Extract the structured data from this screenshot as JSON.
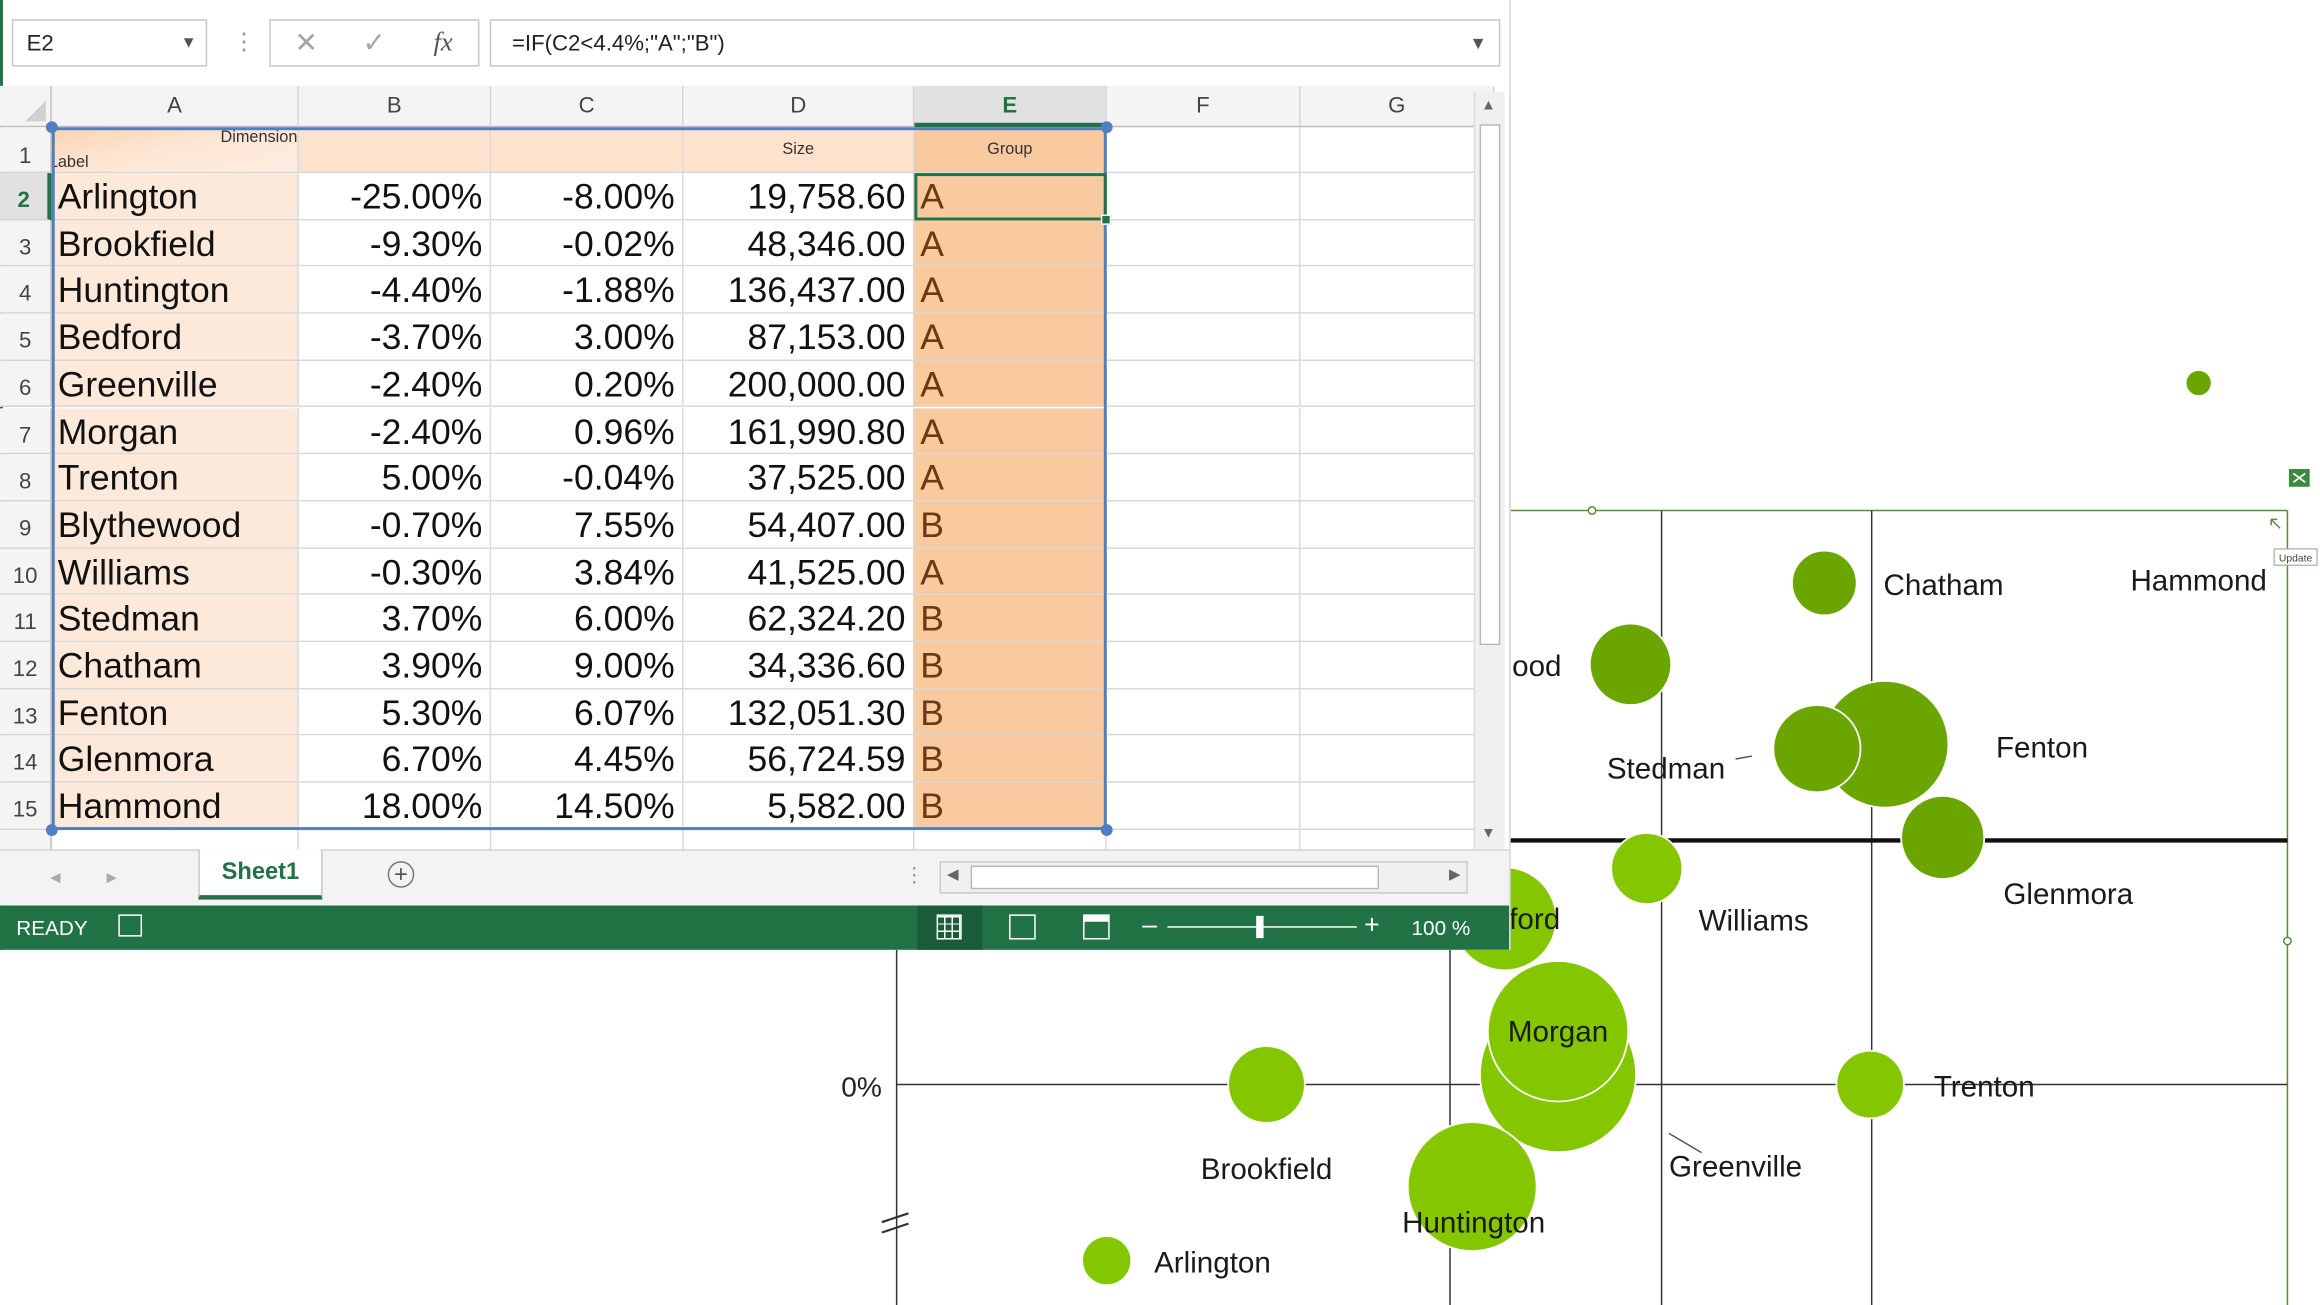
{
  "excel": {
    "name_box": "E2",
    "formula": "=IF(C2<4.4%;\"A\";\"B\")",
    "formula_buttons": {
      "cancel": "✕",
      "enter": "✓",
      "function": "fx"
    },
    "columns": [
      "A",
      "B",
      "C",
      "D",
      "E",
      "F",
      "G"
    ],
    "selected_column": "E",
    "header_row": {
      "row": "1",
      "dimension": "Dimension",
      "label": "Label",
      "size": "Size",
      "group": "Group"
    },
    "rows": [
      {
        "row": "2",
        "label": "Arlington",
        "b": "-25.00%",
        "c": "-8.00%",
        "d": "19,758.60",
        "e": "A"
      },
      {
        "row": "3",
        "label": "Brookfield",
        "b": "-9.30%",
        "c": "-0.02%",
        "d": "48,346.00",
        "e": "A"
      },
      {
        "row": "4",
        "label": "Huntington",
        "b": "-4.40%",
        "c": "-1.88%",
        "d": "136,437.00",
        "e": "A"
      },
      {
        "row": "5",
        "label": "Bedford",
        "b": "-3.70%",
        "c": "3.00%",
        "d": "87,153.00",
        "e": "A"
      },
      {
        "row": "6",
        "label": "Greenville",
        "b": "-2.40%",
        "c": "0.20%",
        "d": "200,000.00",
        "e": "A"
      },
      {
        "row": "7",
        "label": "Morgan",
        "b": "-2.40%",
        "c": "0.96%",
        "d": "161,990.80",
        "e": "A"
      },
      {
        "row": "8",
        "label": "Trenton",
        "b": "5.00%",
        "c": "-0.04%",
        "d": "37,525.00",
        "e": "A"
      },
      {
        "row": "9",
        "label": "Blythewood",
        "b": "-0.70%",
        "c": "7.55%",
        "d": "54,407.00",
        "e": "B"
      },
      {
        "row": "10",
        "label": "Williams",
        "b": "-0.30%",
        "c": "3.84%",
        "d": "41,525.00",
        "e": "A"
      },
      {
        "row": "11",
        "label": "Stedman",
        "b": "3.70%",
        "c": "6.00%",
        "d": "62,324.20",
        "e": "B"
      },
      {
        "row": "12",
        "label": "Chatham",
        "b": "3.90%",
        "c": "9.00%",
        "d": "34,336.60",
        "e": "B"
      },
      {
        "row": "13",
        "label": "Fenton",
        "b": "5.30%",
        "c": "6.07%",
        "d": "132,051.30",
        "e": "B"
      },
      {
        "row": "14",
        "label": "Glenmora",
        "b": "6.70%",
        "c": "4.45%",
        "d": "56,724.59",
        "e": "B"
      },
      {
        "row": "15",
        "label": "Hammond",
        "b": "18.00%",
        "c": "14.50%",
        "d": "5,582.00",
        "e": "B"
      }
    ],
    "sheet_tab": "Sheet1",
    "status_text": "READY",
    "zoom": "100 %"
  },
  "chart_data": {
    "type": "bubble",
    "y_axis_tick": "0%",
    "colors": {
      "group_a": "#84c600",
      "group_b": "#6aa500"
    },
    "bubbles": [
      {
        "label": "Arlington",
        "x": -0.25,
        "y": -0.08,
        "size": 19758.6,
        "group": "A"
      },
      {
        "label": "Brookfield",
        "x": -0.093,
        "y": -0.0002,
        "size": 48346.0,
        "group": "A"
      },
      {
        "label": "Huntington",
        "x": -0.044,
        "y": -0.0188,
        "size": 136437.0,
        "group": "A"
      },
      {
        "label": "Bedford",
        "x": -0.037,
        "y": 0.03,
        "size": 87153.0,
        "group": "A",
        "visible_label": "ford"
      },
      {
        "label": "Greenville",
        "x": -0.024,
        "y": 0.002,
        "size": 200000.0,
        "group": "A"
      },
      {
        "label": "Morgan",
        "x": -0.024,
        "y": 0.0096,
        "size": 161990.8,
        "group": "A"
      },
      {
        "label": "Trenton",
        "x": 0.05,
        "y": -0.0004,
        "size": 37525.0,
        "group": "A"
      },
      {
        "label": "Blythewood",
        "x": -0.007,
        "y": 0.0755,
        "size": 54407.0,
        "group": "B",
        "visible_label": "ood"
      },
      {
        "label": "Williams",
        "x": -0.003,
        "y": 0.0384,
        "size": 41525.0,
        "group": "A"
      },
      {
        "label": "Stedman",
        "x": 0.037,
        "y": 0.06,
        "size": 62324.2,
        "group": "B"
      },
      {
        "label": "Chatham",
        "x": 0.039,
        "y": 0.09,
        "size": 34336.6,
        "group": "B"
      },
      {
        "label": "Fenton",
        "x": 0.053,
        "y": 0.0607,
        "size": 132051.3,
        "group": "B"
      },
      {
        "label": "Glenmora",
        "x": 0.067,
        "y": 0.0445,
        "size": 56724.59,
        "group": "B"
      },
      {
        "label": "Hammond",
        "x": 0.18,
        "y": 0.145,
        "size": 5582.0,
        "group": "B"
      }
    ],
    "update_button": "Update"
  }
}
